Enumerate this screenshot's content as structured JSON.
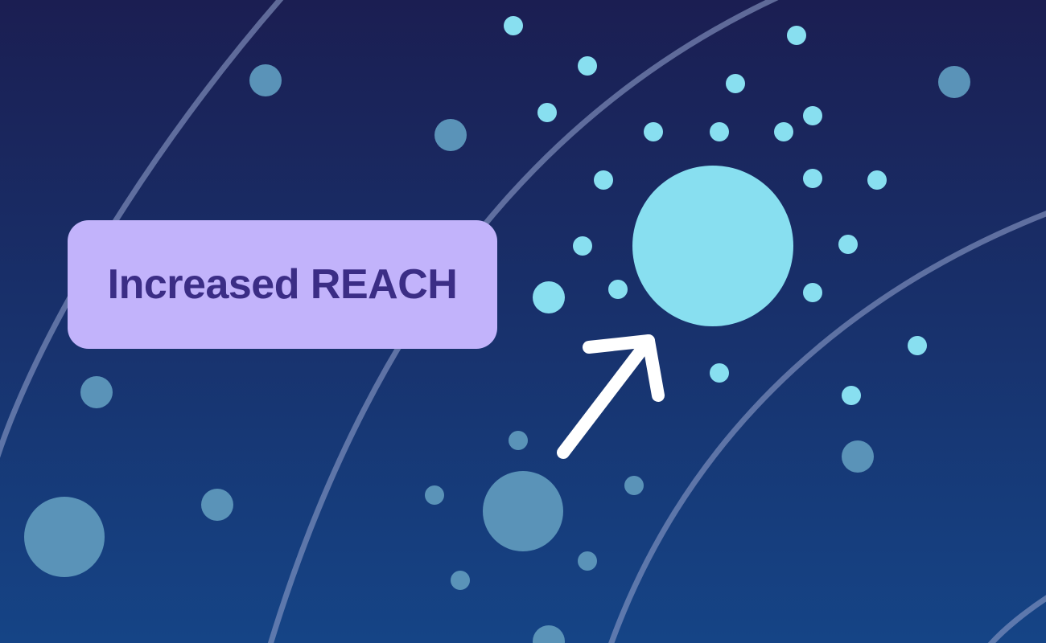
{
  "label": {
    "text": "Increased REACH"
  },
  "colors": {
    "background_top": "#1b1e52",
    "background_bottom": "#154486",
    "arc_stroke": "#8e9cc8",
    "dot_bright": "#88dff0",
    "dot_muted": "#5a93b8",
    "label_background": "#c2b3fb",
    "label_text": "#3b2d85",
    "arrow": "#ffffff"
  },
  "icons": {
    "arrow": "arrow-up-right-icon"
  }
}
